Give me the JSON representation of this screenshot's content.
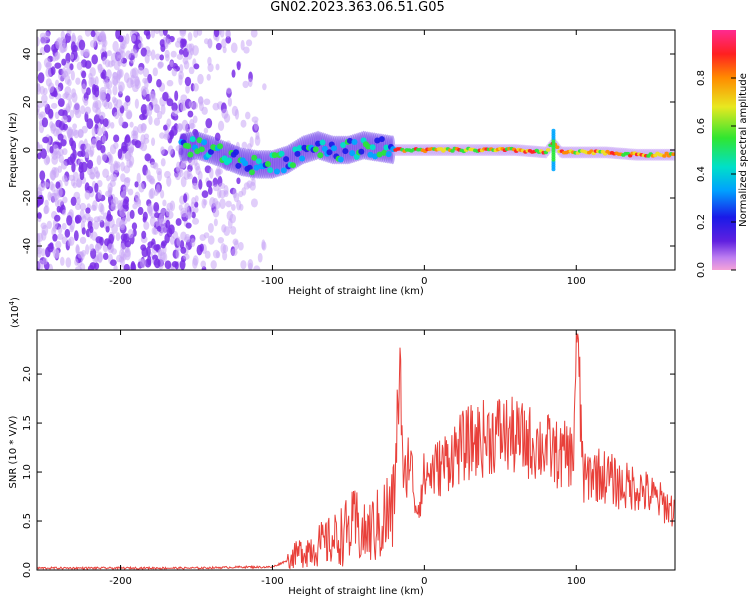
{
  "title": "GN02.2023.363.06.51.G05",
  "colors": {
    "snr_line": "#e8403a",
    "spectrum_dots": "#7a2ee6",
    "spectrum_faint": "#c9a6f5",
    "colormap": [
      "#f5a3d8",
      "#9b3be0",
      "#1e1ee8",
      "#00a6ff",
      "#00e0c8",
      "#28e63c",
      "#f0e020",
      "#ff8a00",
      "#ff2020",
      "#ff2a90"
    ]
  },
  "chart_data": [
    {
      "type": "heatmap",
      "xlabel": "Height of straight line (km)",
      "ylabel": "Frequency (Hz)",
      "xlim": [
        -255,
        165
      ],
      "ylim": [
        -50,
        50
      ],
      "xticks": [
        -200,
        -100,
        0,
        100
      ],
      "yticks": [
        -40,
        -20,
        0,
        20,
        40
      ],
      "xtick_labels": [
        "-200",
        "-100",
        "0",
        "100"
      ],
      "ytick_labels": [
        "-40",
        "-20",
        "0",
        "20",
        "40"
      ],
      "colorbar": {
        "label": "Normalized spectral amplitude",
        "range": [
          0,
          1
        ],
        "ticks": [
          0.0,
          0.2,
          0.4,
          0.6,
          0.8
        ],
        "tick_labels": [
          "0.0",
          "0.2",
          "0.4",
          "0.6",
          "0.8"
        ]
      },
      "noise_region_x": [
        -255,
        -105
      ],
      "signal_track": {
        "x": [
          -160,
          -150,
          -140,
          -120,
          -110,
          -100,
          -90,
          -80,
          -70,
          -60,
          -50,
          -40,
          -30,
          -20,
          -10,
          0,
          20,
          40,
          60,
          80,
          85,
          90,
          100,
          120,
          140,
          165
        ],
        "y": [
          1,
          2,
          0,
          -5,
          -6,
          -6,
          -4,
          0,
          2,
          0,
          0,
          2,
          1,
          0,
          0,
          0,
          0,
          0,
          0,
          -1,
          3,
          -1,
          -1,
          -1,
          -2,
          -2
        ]
      }
    },
    {
      "type": "line",
      "xlabel": "Height of straight line (km)",
      "ylabel": "SNR (10 * V/V)",
      "y_multiplier": "(x10",
      "y_multiplier_exp": "4",
      "y_multiplier_close": ")",
      "xlim": [
        -255,
        165
      ],
      "ylim": [
        0,
        2.45
      ],
      "xticks": [
        -200,
        -100,
        0,
        100
      ],
      "yticks": [
        0.0,
        0.5,
        1.0,
        1.5,
        2.0
      ],
      "xtick_labels": [
        "-200",
        "-100",
        "0",
        "100"
      ],
      "ytick_labels": [
        "0.0",
        "0.5",
        "1.0",
        "1.5",
        "2.0"
      ],
      "series": [
        {
          "x": [
            -255,
            -200,
            -150,
            -120,
            -100,
            -90,
            -80,
            -70,
            -60,
            -50,
            -45,
            -40,
            -35,
            -30,
            -25,
            -20,
            -16,
            -14,
            -10,
            -5,
            0,
            10,
            20,
            30,
            40,
            50,
            60,
            70,
            80,
            90,
            95,
            98,
            100,
            105,
            110,
            120,
            130,
            140,
            150,
            160,
            165
          ],
          "values": [
            0.02,
            0.02,
            0.02,
            0.03,
            0.03,
            0.1,
            0.2,
            0.25,
            0.3,
            0.4,
            0.45,
            0.35,
            0.4,
            0.45,
            0.55,
            0.6,
            2.27,
            0.8,
            1.2,
            0.6,
            0.95,
            1.05,
            1.2,
            1.3,
            1.35,
            1.4,
            1.35,
            1.3,
            1.25,
            1.15,
            1.2,
            1.1,
            2.42,
            0.9,
            1.0,
            0.95,
            0.85,
            0.85,
            0.75,
            0.65,
            0.6
          ]
        }
      ]
    }
  ]
}
